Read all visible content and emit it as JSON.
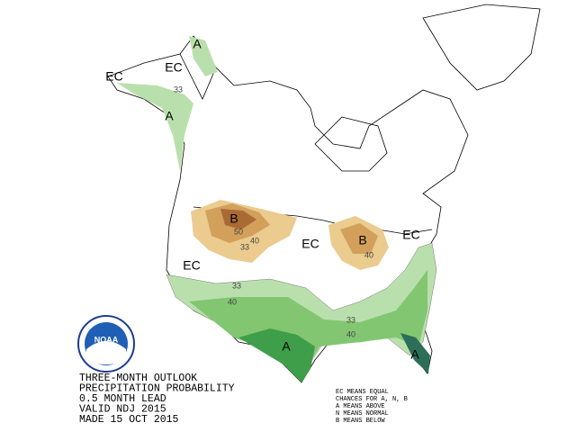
{
  "title_block": {
    "lines": [
      "THREE-MONTH OUTLOOK",
      "PRECIPITATION PROBABILITY",
      "0.5 MONTH LEAD",
      "VALID NDJ 2015",
      "MADE 15 OCT 2015"
    ]
  },
  "legend": {
    "lines": [
      "EC MEANS EQUAL",
      "CHANCES FOR A, N, B",
      "A MEANS ABOVE",
      "N MEANS NORMAL",
      "B MEANS BELOW"
    ]
  },
  "logo": {
    "text": "NOAA"
  },
  "map_labels": [
    "EC",
    "EC",
    "A",
    "A",
    "33",
    "B",
    "50",
    "40",
    "33",
    "EC",
    "B",
    "40",
    "EC",
    "EC",
    "33",
    "40",
    "33",
    "40",
    "A",
    "A"
  ]
}
